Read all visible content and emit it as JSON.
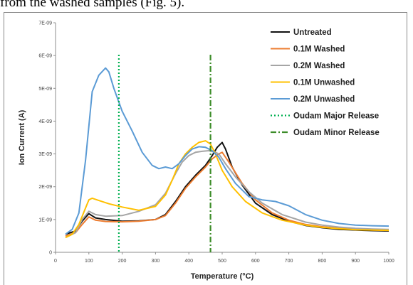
{
  "header_text": "from the washed samples (Fig. 5).",
  "chart_data": {
    "type": "line",
    "xlabel": "Temperature (°C)",
    "ylabel": "Ion Current (A)",
    "xlim": [
      0,
      1000
    ],
    "ylim": [
      0,
      7e-09
    ],
    "x_ticks": [
      "0",
      "100",
      "200",
      "300",
      "400",
      "500",
      "600",
      "700",
      "800",
      "900",
      "1000"
    ],
    "x_tick_values": [
      0,
      100,
      200,
      300,
      400,
      500,
      600,
      700,
      800,
      900,
      1000
    ],
    "y_ticks": [
      "0",
      "1E-09",
      "2E-09",
      "3E-09",
      "4E-09",
      "5E-09",
      "6E-09",
      "7E-09"
    ],
    "y_tick_values": [
      0,
      1e-09,
      2e-09,
      3e-09,
      4e-09,
      5e-09,
      6e-09,
      7e-09
    ],
    "grid": false,
    "legend_position": "top-right",
    "series": [
      {
        "name": "Untreated",
        "color": "#111111",
        "dash": "",
        "x": [
          30,
          60,
          80,
          100,
          120,
          150,
          200,
          250,
          300,
          330,
          360,
          390,
          420,
          450,
          470,
          485,
          500,
          510,
          530,
          560,
          600,
          650,
          700,
          750,
          800,
          850,
          900,
          950,
          1000
        ],
        "y": [
          5.5e-10,
          6.5e-10,
          9.5e-10,
          1.18e-09,
          1.05e-09,
          1e-09,
          9.5e-10,
          9.6e-10,
          1e-09,
          1.15e-09,
          1.55e-09,
          2e-09,
          2.35e-09,
          2.65e-09,
          2.95e-09,
          3.2e-09,
          3.35e-09,
          3.15e-09,
          2.6e-09,
          2.05e-09,
          1.5e-09,
          1.15e-09,
          9.5e-10,
          8.2e-10,
          7.5e-10,
          7e-10,
          6.8e-10,
          6.6e-10,
          6.5e-10
        ]
      },
      {
        "name": "0.1M Washed",
        "color": "#ed7d31",
        "dash": "",
        "x": [
          30,
          60,
          80,
          100,
          120,
          150,
          200,
          250,
          300,
          330,
          360,
          390,
          420,
          450,
          470,
          490,
          500,
          520,
          560,
          600,
          650,
          700,
          750,
          800,
          850,
          900,
          950,
          1000
        ],
        "y": [
          5e-10,
          6e-10,
          8.5e-10,
          1.08e-09,
          9.8e-10,
          9.4e-10,
          9.3e-10,
          9.5e-10,
          1e-09,
          1.12e-09,
          1.5e-09,
          1.95e-09,
          2.3e-09,
          2.6e-09,
          2.85e-09,
          3e-09,
          3.05e-09,
          2.75e-09,
          2.1e-09,
          1.6e-09,
          1.2e-09,
          9.8e-10,
          8.5e-10,
          7.8e-10,
          7.3e-10,
          7e-10,
          6.8e-10,
          6.7e-10
        ]
      },
      {
        "name": "0.2M Washed",
        "color": "#a5a5a5",
        "dash": "",
        "x": [
          30,
          60,
          80,
          100,
          120,
          150,
          200,
          250,
          300,
          330,
          360,
          380,
          400,
          420,
          440,
          460,
          480,
          490,
          510,
          540,
          580,
          620,
          680,
          750,
          800,
          850,
          900,
          950,
          1000
        ],
        "y": [
          4.5e-10,
          6e-10,
          1e-09,
          1.25e-09,
          1.15e-09,
          1.1e-09,
          1.12e-09,
          1.25e-09,
          1.45e-09,
          1.8e-09,
          2.4e-09,
          2.75e-09,
          2.95e-09,
          3.05e-09,
          3.08e-09,
          3.1e-09,
          3.05e-09,
          3e-09,
          2.7e-09,
          2.3e-09,
          1.85e-09,
          1.5e-09,
          1.15e-09,
          9.2e-10,
          8.3e-10,
          7.7e-10,
          7.3e-10,
          7.1e-10,
          7e-10
        ]
      },
      {
        "name": "0.1M Unwashed",
        "color": "#ffc000",
        "dash": "",
        "x": [
          30,
          50,
          70,
          90,
          100,
          110,
          130,
          160,
          200,
          250,
          300,
          330,
          350,
          370,
          390,
          410,
          430,
          450,
          465,
          480,
          500,
          530,
          570,
          620,
          680,
          750,
          800,
          850,
          900,
          950,
          1000
        ],
        "y": [
          4.5e-10,
          5.5e-10,
          8.5e-10,
          1.35e-09,
          1.6e-09,
          1.65e-09,
          1.58e-09,
          1.48e-09,
          1.38e-09,
          1.28e-09,
          1.4e-09,
          1.75e-09,
          2.2e-09,
          2.7e-09,
          3e-09,
          3.2e-09,
          3.35e-09,
          3.4e-09,
          3.3e-09,
          3e-09,
          2.5e-09,
          2e-09,
          1.55e-09,
          1.2e-09,
          9.8e-10,
          8.3e-10,
          7.6e-10,
          7.2e-10,
          6.9e-10,
          6.8e-10,
          6.7e-10
        ]
      },
      {
        "name": "0.2M Unwashed",
        "color": "#5b9bd5",
        "dash": "",
        "x": [
          30,
          50,
          70,
          90,
          110,
          130,
          150,
          160,
          175,
          200,
          230,
          260,
          290,
          310,
          330,
          350,
          370,
          390,
          410,
          430,
          450,
          470,
          490,
          510,
          540,
          580,
          620,
          660,
          700,
          750,
          800,
          850,
          900,
          950,
          1000
        ],
        "y": [
          5.5e-10,
          7e-10,
          1.2e-09,
          2.8e-09,
          4.9e-09,
          5.4e-09,
          5.62e-09,
          5.5e-09,
          5e-09,
          4.3e-09,
          3.7e-09,
          3.05e-09,
          2.65e-09,
          2.55e-09,
          2.6e-09,
          2.55e-09,
          2.7e-09,
          2.95e-09,
          3.15e-09,
          3.22e-09,
          3.2e-09,
          3.1e-09,
          2.9e-09,
          2.55e-09,
          2.1e-09,
          1.7e-09,
          1.6e-09,
          1.55e-09,
          1.42e-09,
          1.15e-09,
          9.8e-10,
          8.8e-10,
          8.3e-10,
          8.1e-10,
          8e-10
        ]
      },
      {
        "name": "Oudam Major Release",
        "color": "#00b050",
        "dash": "2,3",
        "vertical_x": 190
      },
      {
        "name": "Oudam Minor Release",
        "color": "#3c8c28",
        "dash": "8,3,2,3",
        "vertical_x": 465
      }
    ]
  }
}
